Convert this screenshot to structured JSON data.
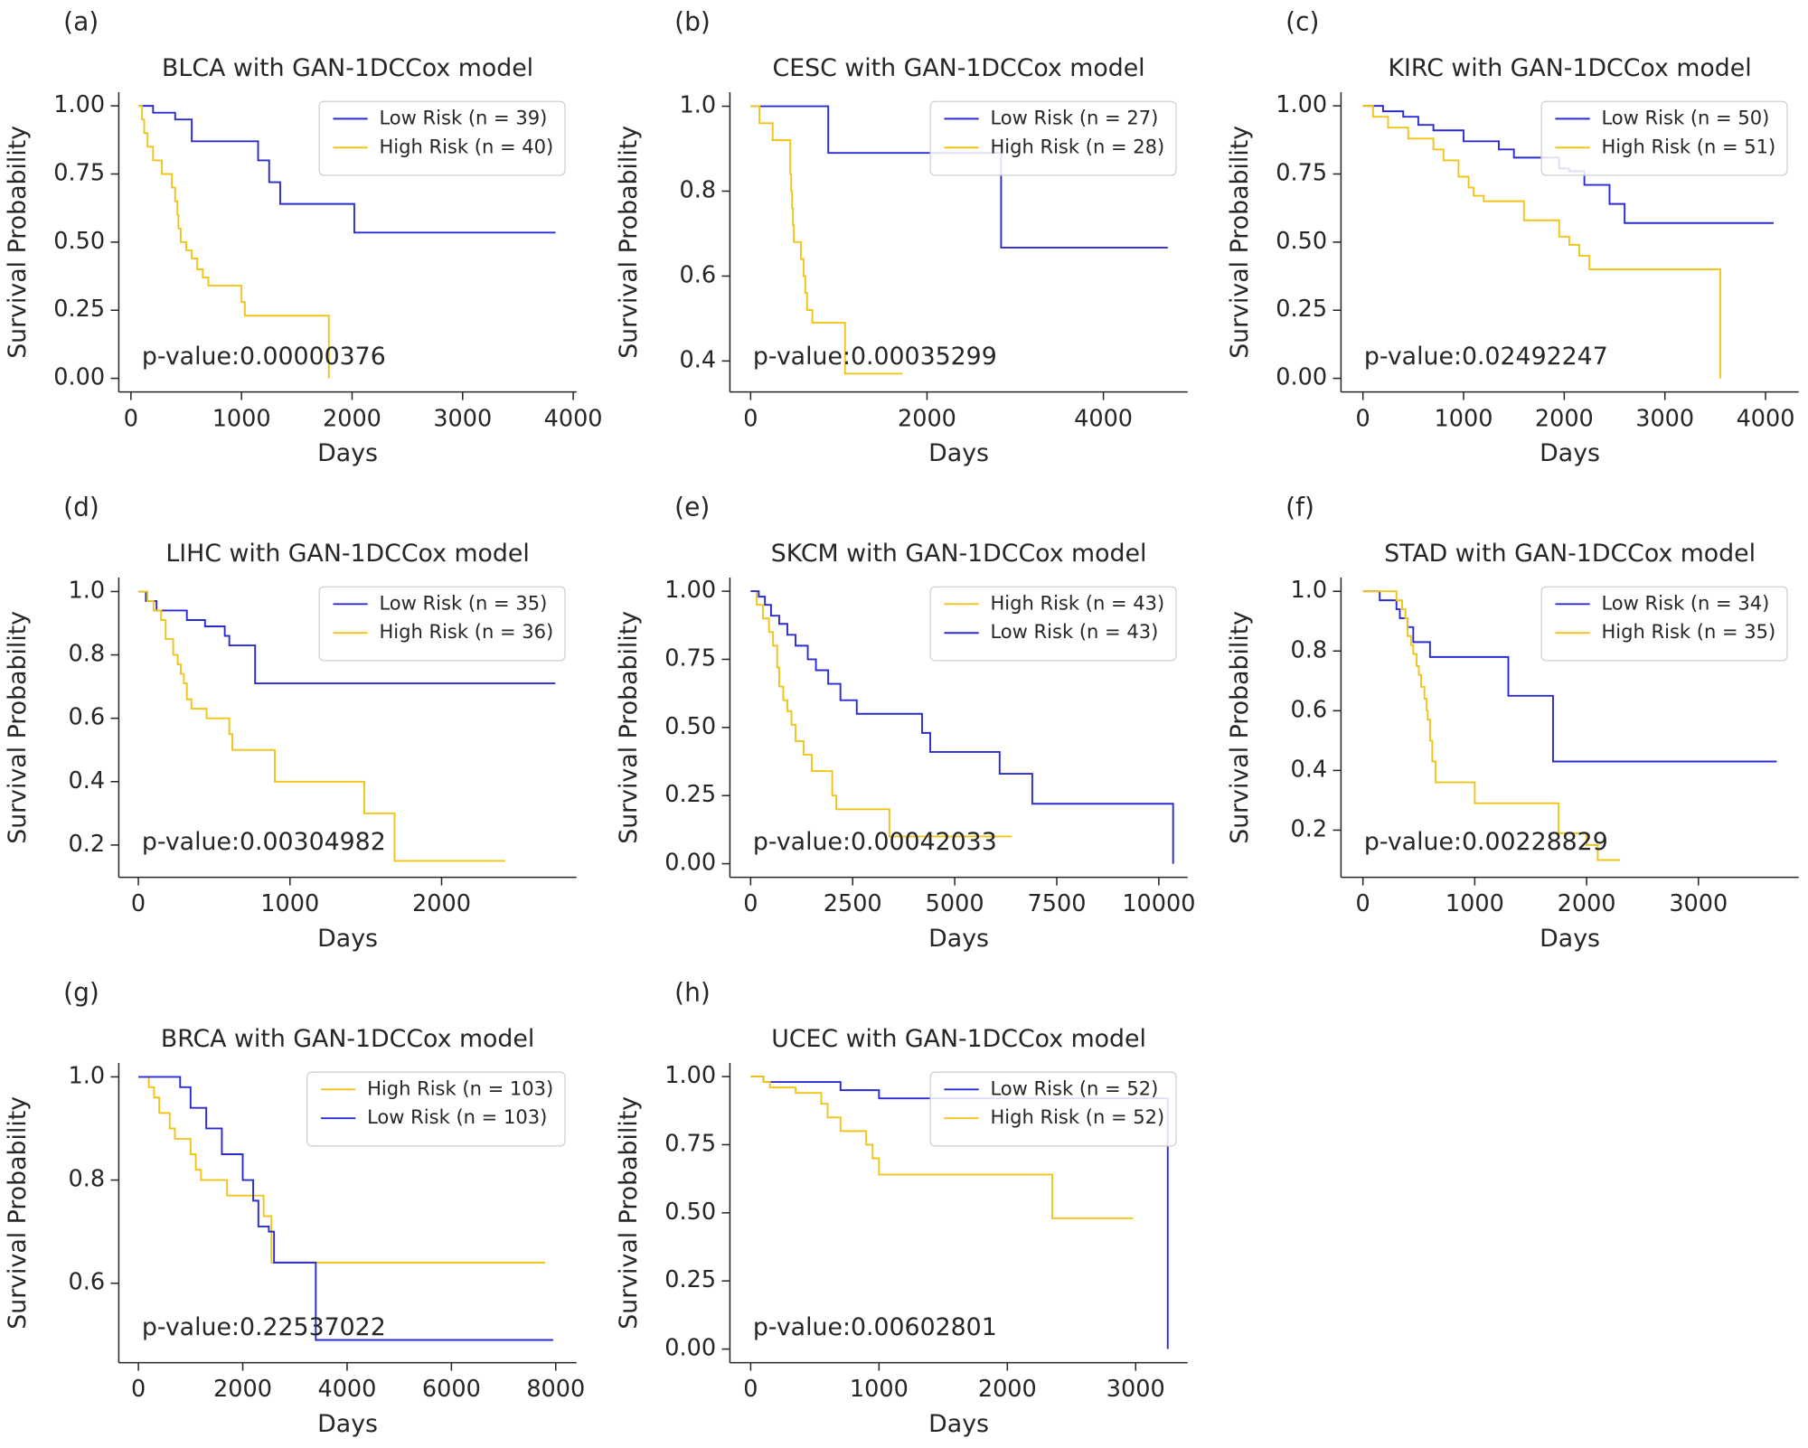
{
  "chart_data": [
    {
      "type": "line",
      "drawstyle": "steps-post",
      "panel_label": "(a)",
      "title": "BLCA with GAN-1DCCox model",
      "xlabel": "Days",
      "ylabel": "Survival Probability",
      "annotation": "p-value:0.00000376",
      "legend": "upper right",
      "xlim": [
        -110,
        4030
      ],
      "ylim": [
        -0.05,
        1.05
      ],
      "xticks": [
        0,
        1000,
        2000,
        3000,
        4000
      ],
      "yticks": [
        {
          "value": 0,
          "label": "0.00"
        },
        0.25,
        {
          "value": 0.5,
          "label": "0.50"
        },
        0.75,
        {
          "value": 1,
          "label": "1.00"
        }
      ],
      "series": [
        {
          "name": "Low Risk (n = 39)",
          "color": "#2b2bd4",
          "x": [
            70,
            200,
            400,
            550,
            1150,
            1250,
            1350,
            2020,
            3840
          ],
          "values": [
            1.0,
            0.975,
            0.95,
            0.87,
            0.8,
            0.72,
            0.64,
            0.535,
            0.535
          ]
        },
        {
          "name": "High Risk (n = 40)",
          "color": "#f0c419",
          "x": [
            70,
            100,
            120,
            150,
            200,
            280,
            370,
            400,
            420,
            430,
            450,
            500,
            550,
            600,
            650,
            700,
            1000,
            1030,
            1790
          ],
          "values": [
            1.0,
            0.95,
            0.9,
            0.85,
            0.8,
            0.75,
            0.7,
            0.65,
            0.6,
            0.55,
            0.5,
            0.47,
            0.44,
            0.4,
            0.37,
            0.34,
            0.28,
            0.23,
            0.0
          ]
        }
      ]
    },
    {
      "type": "line",
      "drawstyle": "steps-post",
      "panel_label": "(b)",
      "title": "CESC with GAN-1DCCox model",
      "xlabel": "Days",
      "ylabel": "Survival Probability",
      "annotation": "p-value:0.00035299",
      "legend": "upper right",
      "xlim": [
        -235,
        4955
      ],
      "ylim": [
        0.327,
        1.033
      ],
      "xticks": [
        0,
        2000,
        4000
      ],
      "yticks": [
        0.4,
        0.6,
        0.8,
        {
          "value": 1,
          "label": "1.0"
        }
      ],
      "series": [
        {
          "name": "Low Risk (n = 27)",
          "color": "#2b2bd4",
          "x": [
            0,
            880,
            2840,
            4730
          ],
          "values": [
            1.0,
            0.89,
            0.667,
            0.667
          ]
        },
        {
          "name": "High Risk (n = 28)",
          "color": "#f0c419",
          "x": [
            0,
            100,
            250,
            450,
            460,
            470,
            480,
            490,
            570,
            600,
            620,
            640,
            700,
            1070,
            1720
          ],
          "values": [
            1.0,
            0.96,
            0.92,
            0.84,
            0.8,
            0.76,
            0.72,
            0.68,
            0.64,
            0.6,
            0.56,
            0.52,
            0.49,
            0.37,
            0.37
          ]
        }
      ]
    },
    {
      "type": "line",
      "drawstyle": "steps-post",
      "panel_label": "(c)",
      "title": "KIRC with GAN-1DCCox model",
      "xlabel": "Days",
      "ylabel": "Survival Probability",
      "annotation": "p-value:0.02492247",
      "legend": "upper right",
      "xlim": [
        -218,
        4330
      ],
      "ylim": [
        -0.05,
        1.05
      ],
      "xticks": [
        0,
        1000,
        2000,
        3000,
        4000
      ],
      "yticks": [
        {
          "value": 0,
          "label": "0.00"
        },
        0.25,
        {
          "value": 0.5,
          "label": "0.50"
        },
        0.75,
        {
          "value": 1,
          "label": "1.00"
        }
      ],
      "series": [
        {
          "name": "Low Risk (n = 50)",
          "color": "#2b2bd4",
          "x": [
            0,
            200,
            400,
            550,
            700,
            1000,
            1350,
            1500,
            1950,
            2050,
            2200,
            2450,
            2600,
            4080
          ],
          "values": [
            1.0,
            0.98,
            0.96,
            0.93,
            0.91,
            0.87,
            0.84,
            0.81,
            0.77,
            0.76,
            0.71,
            0.64,
            0.57,
            0.57
          ]
        },
        {
          "name": "High Risk (n = 51)",
          "color": "#f0c419",
          "x": [
            0,
            100,
            250,
            450,
            700,
            800,
            950,
            1050,
            1100,
            1200,
            1600,
            1950,
            2050,
            2150,
            2250,
            3550
          ],
          "values": [
            1.0,
            0.96,
            0.92,
            0.88,
            0.84,
            0.8,
            0.74,
            0.7,
            0.67,
            0.65,
            0.58,
            0.52,
            0.49,
            0.45,
            0.4,
            0.0
          ]
        }
      ]
    },
    {
      "type": "line",
      "drawstyle": "steps-post",
      "panel_label": "(d)",
      "title": "LIHC with GAN-1DCCox model",
      "xlabel": "Days",
      "ylabel": "Survival Probability",
      "annotation": "p-value:0.00304982",
      "legend": "upper right",
      "xlim": [
        -129,
        2890
      ],
      "ylim": [
        0.098,
        1.044
      ],
      "xticks": [
        0,
        1000,
        2000
      ],
      "yticks": [
        0.2,
        0.4,
        0.6,
        0.8,
        {
          "value": 1,
          "label": "1.0"
        }
      ],
      "series": [
        {
          "name": "Low Risk (n = 35)",
          "color": "#2b2bd4",
          "x": [
            0,
            50,
            120,
            320,
            440,
            570,
            600,
            770,
            2750
          ],
          "values": [
            1.0,
            0.97,
            0.94,
            0.91,
            0.89,
            0.86,
            0.83,
            0.71,
            0.71
          ]
        },
        {
          "name": "High Risk (n = 36)",
          "color": "#f0c419",
          "x": [
            0,
            60,
            100,
            150,
            180,
            230,
            260,
            280,
            300,
            320,
            350,
            450,
            600,
            620,
            900,
            1490,
            1690,
            2420
          ],
          "values": [
            1.0,
            0.97,
            0.94,
            0.91,
            0.85,
            0.8,
            0.77,
            0.74,
            0.71,
            0.66,
            0.63,
            0.6,
            0.55,
            0.5,
            0.4,
            0.3,
            0.15,
            0.15
          ]
        }
      ]
    },
    {
      "type": "line",
      "drawstyle": "steps-post",
      "panel_label": "(e)",
      "title": "SKCM with GAN-1DCCox model",
      "xlabel": "Days",
      "ylabel": "Survival Probability",
      "annotation": "p-value:0.00042033",
      "legend": "upper right",
      "xlim": [
        -508,
        10706
      ],
      "ylim": [
        -0.05,
        1.05
      ],
      "xticks": [
        0,
        2500,
        5000,
        7500,
        10000
      ],
      "yticks": [
        {
          "value": 0,
          "label": "0.00"
        },
        0.25,
        {
          "value": 0.5,
          "label": "0.50"
        },
        0.75,
        {
          "value": 1,
          "label": "1.00"
        }
      ],
      "series": [
        {
          "name": "High Risk (n = 43)",
          "color": "#f0c419",
          "x": [
            0,
            150,
            300,
            450,
            550,
            650,
            700,
            800,
            900,
            1000,
            1100,
            1300,
            1500,
            2000,
            2100,
            3400,
            6400
          ],
          "values": [
            1.0,
            0.95,
            0.9,
            0.85,
            0.8,
            0.72,
            0.65,
            0.6,
            0.56,
            0.51,
            0.45,
            0.4,
            0.34,
            0.25,
            0.2,
            0.1,
            0.1
          ]
        },
        {
          "name": "Low Risk (n = 43)",
          "color": "#2b2bd4",
          "x": [
            0,
            200,
            350,
            500,
            700,
            900,
            1100,
            1400,
            1600,
            1900,
            2200,
            2600,
            4200,
            4400,
            6100,
            6900,
            10350
          ],
          "values": [
            1.0,
            0.98,
            0.95,
            0.91,
            0.88,
            0.84,
            0.8,
            0.75,
            0.71,
            0.66,
            0.6,
            0.55,
            0.48,
            0.41,
            0.33,
            0.22,
            0.0
          ]
        }
      ]
    },
    {
      "type": "line",
      "drawstyle": "steps-post",
      "panel_label": "(f)",
      "title": "STAD with GAN-1DCCox model",
      "xlabel": "Days",
      "ylabel": "Survival Probability",
      "annotation": "p-value:0.00228829",
      "legend": "upper right",
      "xlim": [
        -196,
        3897
      ],
      "ylim": [
        0.042,
        1.046
      ],
      "xticks": [
        0,
        1000,
        2000,
        3000
      ],
      "yticks": [
        0.2,
        0.4,
        0.6,
        0.8,
        {
          "value": 1,
          "label": "1.0"
        }
      ],
      "series": [
        {
          "name": "Low Risk (n = 34)",
          "color": "#2b2bd4",
          "x": [
            0,
            150,
            300,
            330,
            400,
            450,
            600,
            1300,
            1700,
            3700
          ],
          "values": [
            1.0,
            0.97,
            0.94,
            0.91,
            0.88,
            0.83,
            0.78,
            0.65,
            0.43,
            0.43
          ]
        },
        {
          "name": "High Risk (n = 35)",
          "color": "#f0c419",
          "x": [
            0,
            300,
            350,
            380,
            400,
            430,
            450,
            480,
            500,
            520,
            550,
            570,
            580,
            600,
            620,
            650,
            1000,
            1750,
            2000,
            2100,
            2300
          ],
          "values": [
            1.0,
            0.97,
            0.94,
            0.91,
            0.85,
            0.82,
            0.79,
            0.75,
            0.72,
            0.68,
            0.64,
            0.6,
            0.57,
            0.5,
            0.43,
            0.36,
            0.29,
            0.19,
            0.15,
            0.1,
            0.1
          ]
        }
      ]
    },
    {
      "type": "line",
      "drawstyle": "steps-post",
      "panel_label": "(g)",
      "title": "BRCA with GAN-1DCCox model",
      "xlabel": "Days",
      "ylabel": "Survival Probability",
      "annotation": "p-value:0.22537022",
      "legend": "upper right",
      "xlim": [
        -376,
        8398
      ],
      "ylim": [
        0.446,
        1.027
      ],
      "xticks": [
        0,
        2000,
        4000,
        6000,
        8000
      ],
      "yticks": [
        0.6,
        0.8,
        {
          "value": 1,
          "label": "1.0"
        }
      ],
      "series": [
        {
          "name": "High Risk (n = 103)",
          "color": "#f0c419",
          "x": [
            0,
            200,
            300,
            400,
            600,
            700,
            1000,
            1100,
            1200,
            1700,
            2400,
            2550,
            7800
          ],
          "values": [
            1.0,
            0.98,
            0.96,
            0.93,
            0.9,
            0.88,
            0.85,
            0.82,
            0.8,
            0.77,
            0.73,
            0.64,
            0.64
          ]
        },
        {
          "name": "Low Risk (n = 103)",
          "color": "#2b2bd4",
          "x": [
            0,
            800,
            1000,
            1300,
            1600,
            2000,
            2200,
            2300,
            2500,
            2600,
            3400,
            7950
          ],
          "values": [
            1.0,
            0.98,
            0.94,
            0.9,
            0.85,
            0.8,
            0.76,
            0.71,
            0.7,
            0.64,
            0.49,
            0.49
          ]
        }
      ]
    },
    {
      "type": "line",
      "drawstyle": "steps-post",
      "panel_label": "(h)",
      "title": "UCEC with GAN-1DCCox model",
      "xlabel": "Days",
      "ylabel": "Survival Probability",
      "annotation": "p-value:0.00602801",
      "legend": "upper right",
      "xlim": [
        -162,
        3405
      ],
      "ylim": [
        -0.05,
        1.05
      ],
      "xticks": [
        0,
        1000,
        2000,
        3000
      ],
      "yticks": [
        {
          "value": 0,
          "label": "0.00"
        },
        0.25,
        {
          "value": 0.5,
          "label": "0.50"
        },
        0.75,
        {
          "value": 1,
          "label": "1.00"
        }
      ],
      "series": [
        {
          "name": "Low Risk (n = 52)",
          "color": "#2b2bd4",
          "x": [
            0,
            100,
            700,
            1000,
            3250
          ],
          "values": [
            1.0,
            0.98,
            0.95,
            0.92,
            0.0
          ]
        },
        {
          "name": "High Risk (n = 52)",
          "color": "#f0c419",
          "x": [
            0,
            100,
            150,
            350,
            550,
            600,
            700,
            900,
            950,
            1000,
            2350,
            2980
          ],
          "values": [
            1.0,
            0.98,
            0.96,
            0.94,
            0.9,
            0.85,
            0.8,
            0.75,
            0.7,
            0.64,
            0.48,
            0.48
          ]
        }
      ]
    }
  ]
}
